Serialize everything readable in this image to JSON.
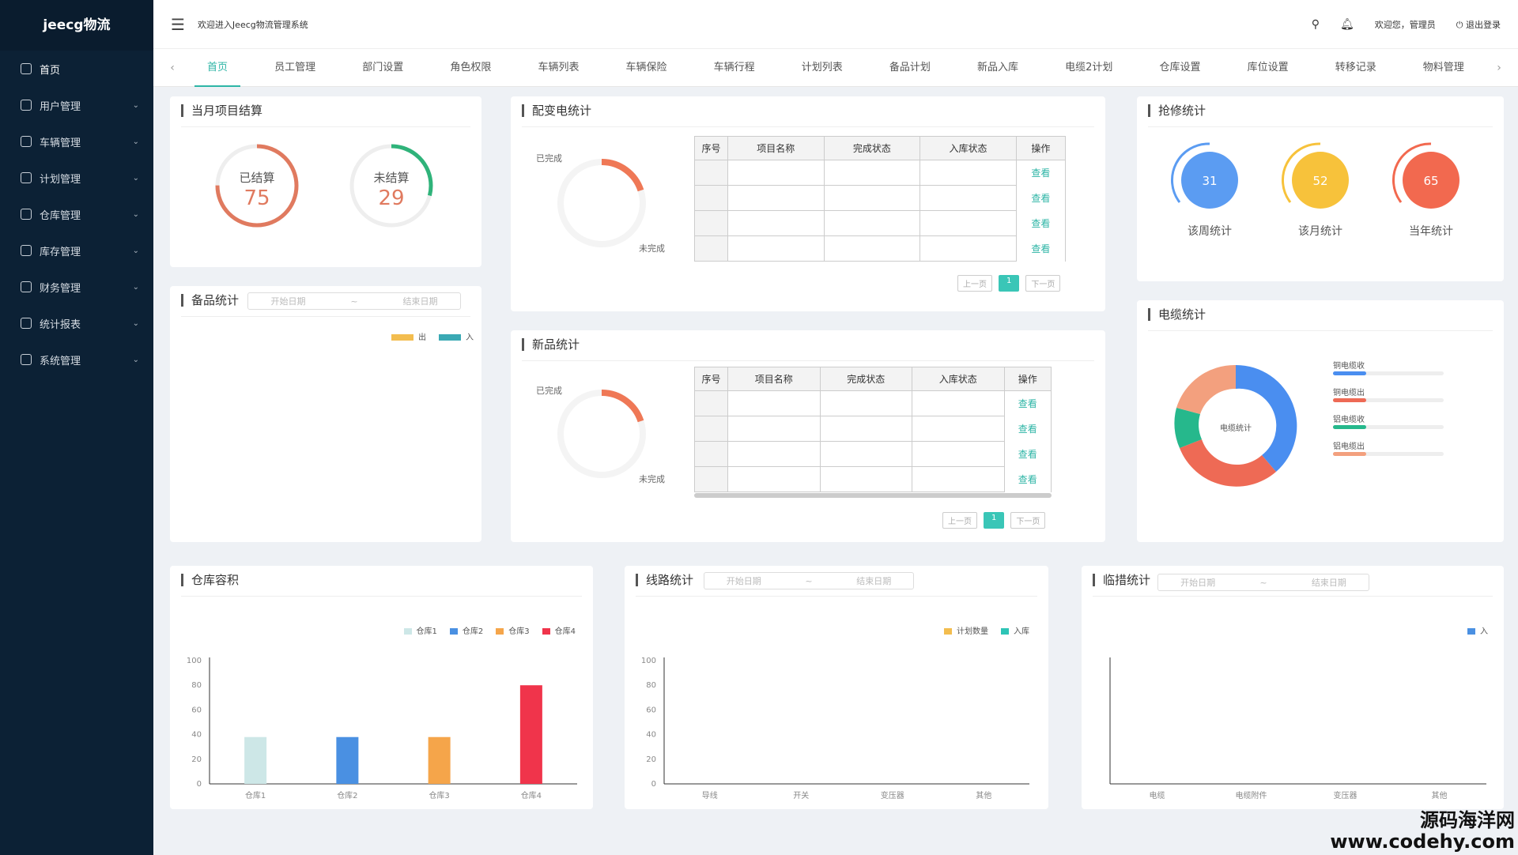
{
  "sidebar": {
    "logo": "jeecg物流",
    "items": [
      {
        "label": "首页",
        "expandable": false
      },
      {
        "label": "用户管理",
        "expandable": true
      },
      {
        "label": "车辆管理",
        "expandable": true
      },
      {
        "label": "计划管理",
        "expandable": true
      },
      {
        "label": "仓库管理",
        "expandable": true
      },
      {
        "label": "库存管理",
        "expandable": true
      },
      {
        "label": "财务管理",
        "expandable": true
      },
      {
        "label": "统计报表",
        "expandable": true
      },
      {
        "label": "系统管理",
        "expandable": true
      }
    ]
  },
  "header": {
    "welcome": "欢迎进入Jeecg物流管理系统",
    "user_greeting": "欢迎您，管理员",
    "logout": "退出登录"
  },
  "tabs": [
    "首页",
    "员工管理",
    "部门设置",
    "角色权限",
    "车辆列表",
    "车辆保险",
    "车辆行程",
    "计划列表",
    "备品计划",
    "新品入库",
    "电缆2计划",
    "仓库设置",
    "库位设置",
    "转移记录",
    "物料管理"
  ],
  "project_settlement": {
    "title": "当月项目结算",
    "settled": {
      "label": "已结算",
      "value": "75",
      "color": "#e07a5f",
      "fraction": 0.75
    },
    "unsettled": {
      "label": "未结算",
      "value": "29",
      "color": "#2fb37a",
      "fraction": 0.29
    }
  },
  "substation": {
    "title": "配变电统计",
    "done_label": "已完成",
    "undone_label": "未完成",
    "done_fraction": 0.2,
    "headers": [
      "序号",
      "项目名称",
      "完成状态",
      "入库状态",
      "操作"
    ],
    "view_label": "查看",
    "prev": "上一页",
    "next": "下一页",
    "page": "1"
  },
  "newproduct": {
    "title": "新品统计",
    "done_label": "已完成",
    "undone_label": "未完成",
    "done_fraction": 0.2,
    "headers": [
      "序号",
      "项目名称",
      "完成状态",
      "入库状态",
      "操作"
    ],
    "view_label": "查看",
    "prev": "上一页",
    "next": "下一页",
    "page": "1"
  },
  "repair": {
    "title": "抢修统计",
    "items": [
      {
        "value": "31",
        "label": "该周统计",
        "color": "#5b9cf2"
      },
      {
        "value": "52",
        "label": "该月统计",
        "color": "#f7c23b"
      },
      {
        "value": "65",
        "label": "当年统计",
        "color": "#f2694f"
      }
    ]
  },
  "spare": {
    "title": "备品统计",
    "start": "开始日期",
    "tilde": "~",
    "end": "结束日期",
    "legend_out": "出",
    "legend_in": "入",
    "color_out": "#f3bd4f",
    "color_in": "#3aa9b4"
  },
  "cable": {
    "title": "电缆统计",
    "center": "电缆统计",
    "legend": [
      {
        "label": "铜电缆收",
        "color": "#4a8ef0"
      },
      {
        "label": "铜电缆出",
        "color": "#ee6a55"
      },
      {
        "label": "铝电缆收",
        "color": "#26b88c"
      },
      {
        "label": "铝电缆出",
        "color": "#f3a07e"
      }
    ]
  },
  "warehouse": {
    "title": "仓库容积",
    "chart_data": {
      "type": "bar",
      "categories": [
        "仓库1",
        "仓库2",
        "仓库3",
        "仓库4"
      ],
      "values": [
        38,
        38,
        38,
        80
      ],
      "colors": [
        "#cde7e7",
        "#4a90e2",
        "#f5a54a",
        "#f0344b"
      ],
      "legend": [
        "仓库1",
        "仓库2",
        "仓库3",
        "仓库4"
      ],
      "ylim": [
        0,
        100
      ],
      "yticks": [
        0,
        20,
        40,
        60,
        80,
        100
      ]
    }
  },
  "line_stats": {
    "title": "线路统计",
    "start": "开始日期",
    "tilde": "~",
    "end": "结束日期",
    "chart_data": {
      "type": "bar",
      "categories": [
        "导线",
        "开关",
        "变压器",
        "其他"
      ],
      "legend": [
        "计划数量",
        "入库"
      ],
      "legend_colors": [
        "#f3bd4f",
        "#2ec4b6"
      ],
      "ylim": [
        0,
        100
      ],
      "yticks": [
        0,
        20,
        40,
        60,
        80,
        100
      ]
    }
  },
  "measures": {
    "title": "临措统计",
    "start": "开始日期",
    "tilde": "~",
    "end": "结束日期",
    "chart_data": {
      "type": "bar",
      "categories": [
        "电缆",
        "电缆附件",
        "变压器",
        "其他"
      ],
      "legend": [
        "入"
      ],
      "legend_colors": [
        "#4a90e2"
      ]
    }
  },
  "watermark": {
    "line1": "源码海洋网",
    "line2": "www.codehy.com"
  }
}
